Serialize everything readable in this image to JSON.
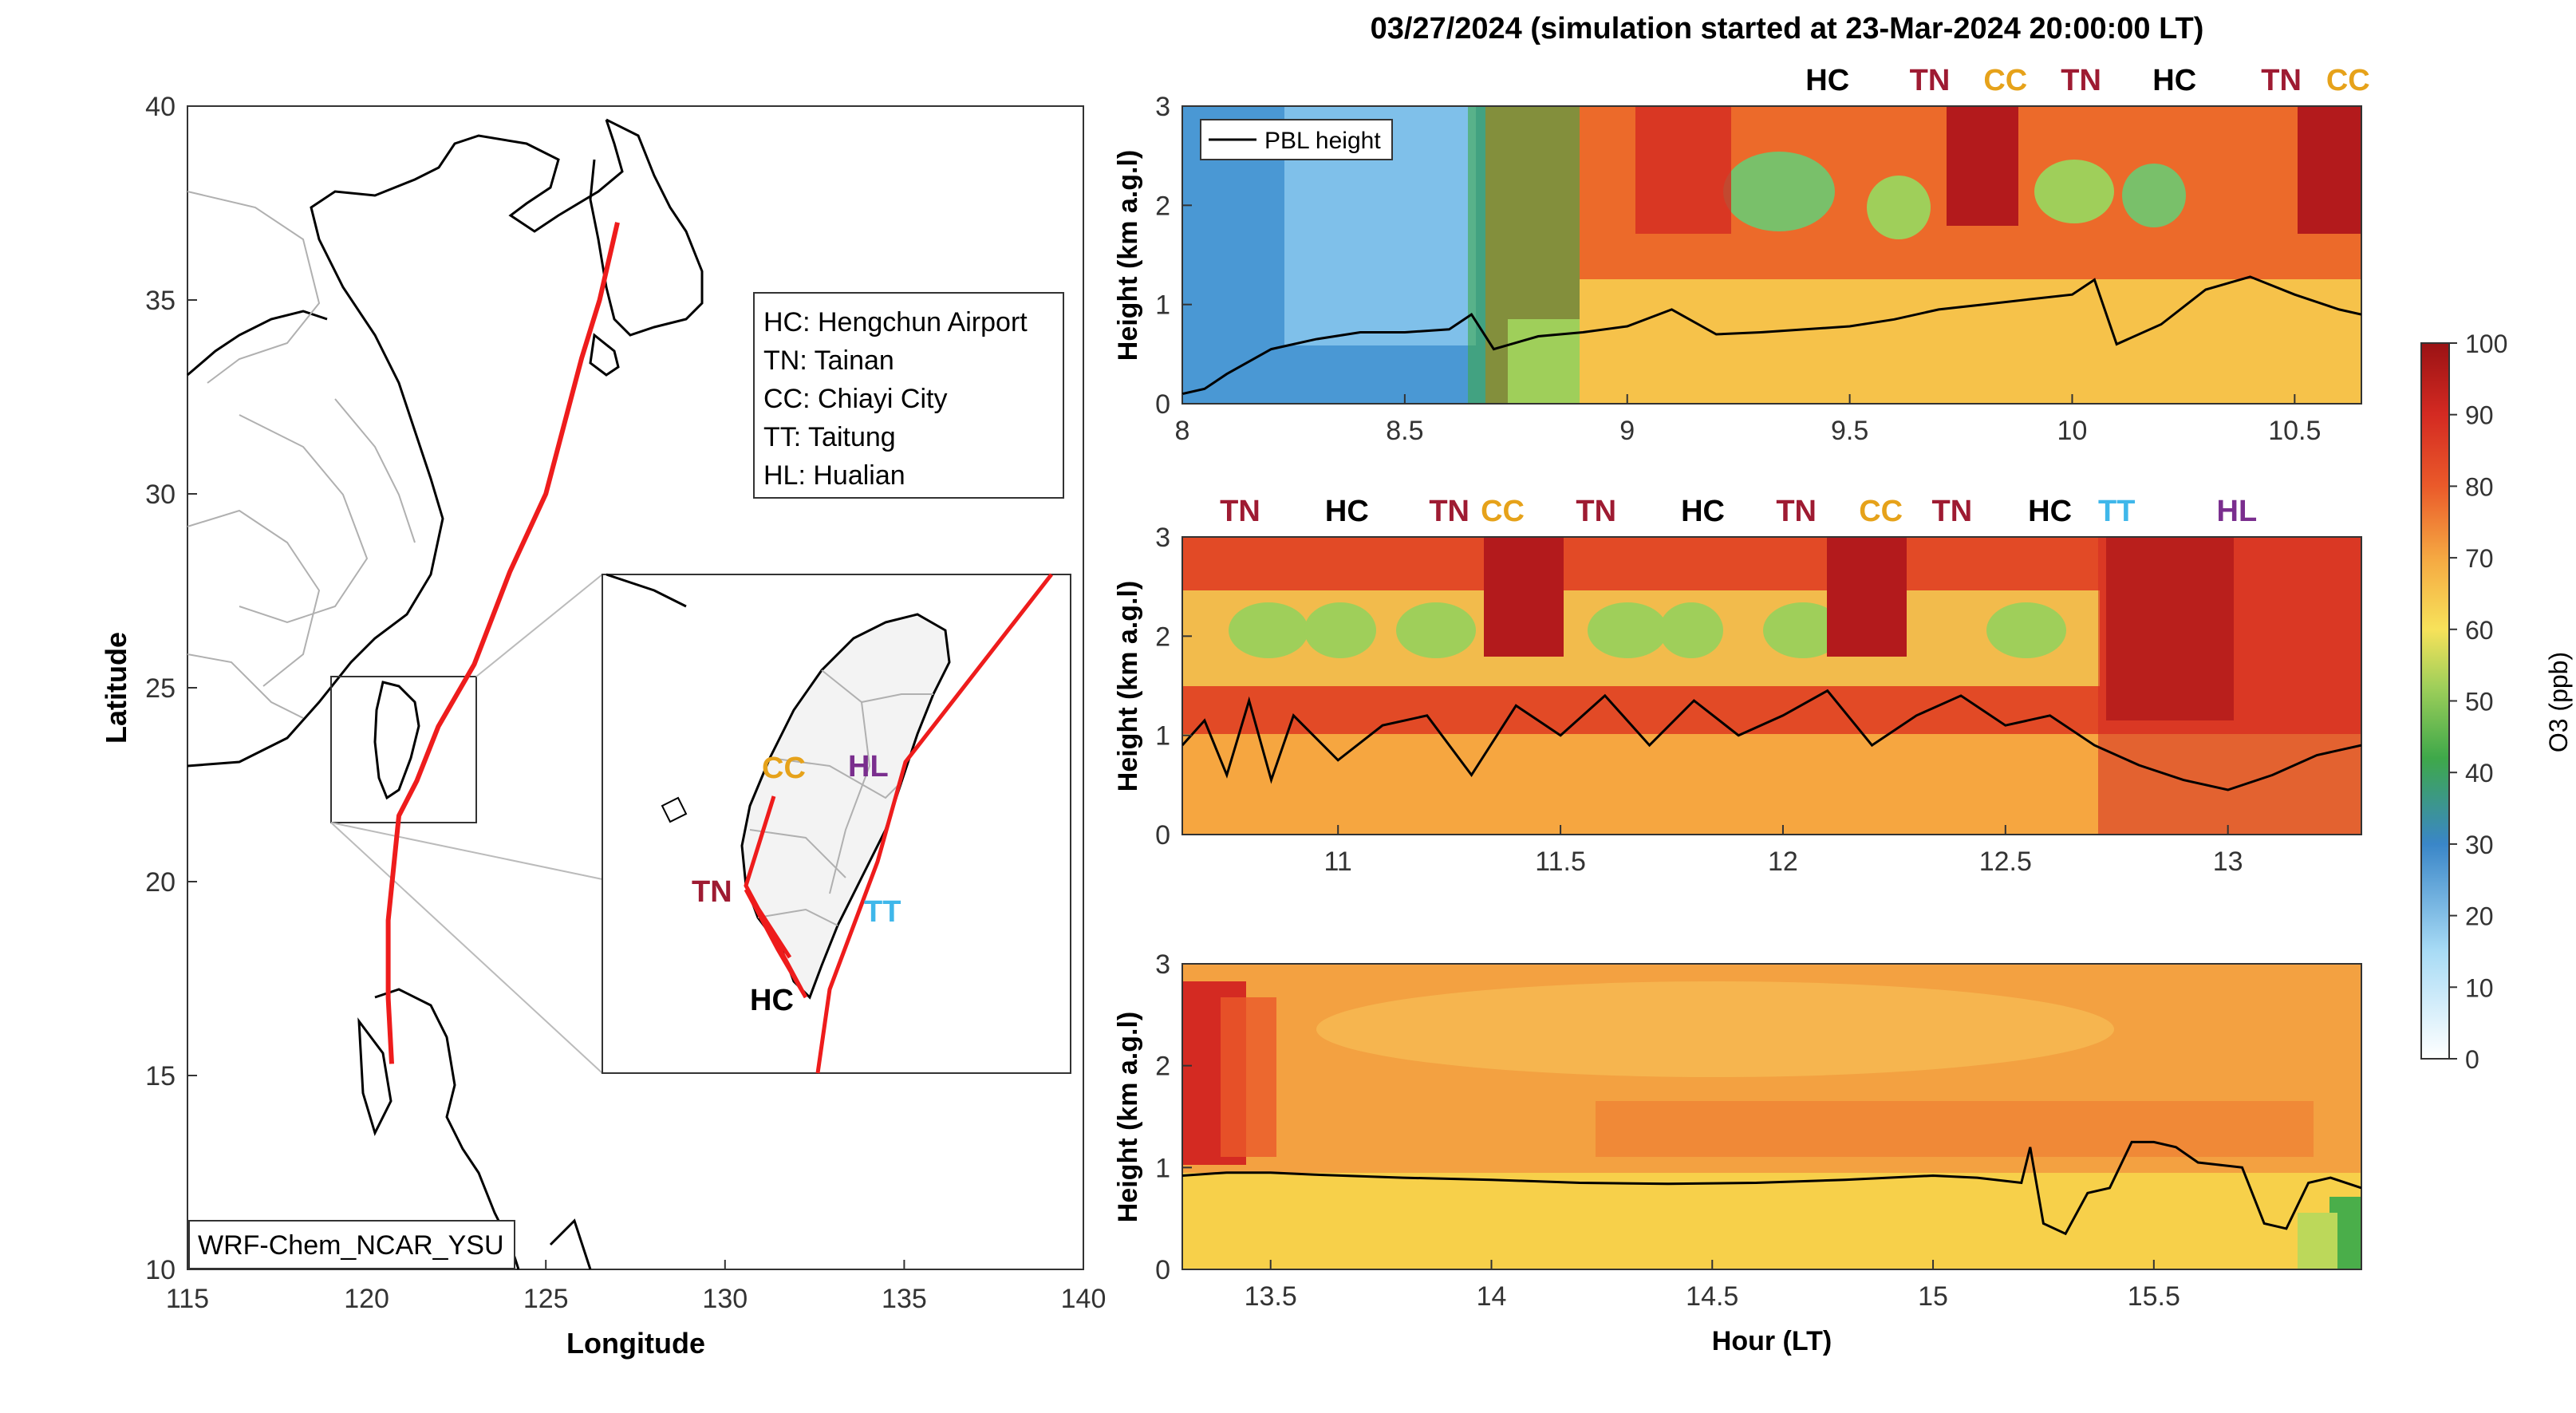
{
  "title": "03/27/2024 (simulation started at 23-Mar-2024 20:00:00 LT)",
  "colors": {
    "track": "#ee1c1c",
    "TN": "#9e1b32",
    "HC": "#000000",
    "CC": "#e6a21a",
    "TT": "#3fb7ea",
    "HL": "#7a2e8e",
    "pbl": "#000000"
  },
  "map": {
    "xlabel": "Longitude",
    "ylabel": "Latitude",
    "xticks": [
      "115",
      "120",
      "125",
      "130",
      "135",
      "140"
    ],
    "yticks": [
      "40",
      "35",
      "30",
      "25",
      "20",
      "15",
      "10"
    ],
    "xlim": [
      115,
      140
    ],
    "ylim": [
      10,
      40
    ],
    "model_label": "WRF-Chem_NCAR_YSU",
    "legend": [
      "HC: Hengchun Airport",
      "TN: Tainan",
      "CC: Chiayi City",
      "TT: Taitung",
      "HL: Hualian"
    ],
    "inset_labels": [
      "CC",
      "HL",
      "TN",
      "TT",
      "HC"
    ],
    "track": [
      [
        127.0,
        37.0
      ],
      [
        126.5,
        35.0
      ],
      [
        126.0,
        33.5
      ],
      [
        125.0,
        30.0
      ],
      [
        124.0,
        28.0
      ],
      [
        123.0,
        25.6
      ],
      [
        122.0,
        24.0
      ],
      [
        121.4,
        22.6
      ],
      [
        120.9,
        21.7
      ],
      [
        120.6,
        19.0
      ],
      [
        120.6,
        17.0
      ],
      [
        120.7,
        15.3
      ]
    ]
  },
  "chart_data": [
    {
      "type": "heatmap",
      "title": "",
      "xlabel": "",
      "ylabel": "Height (km a.g.l)",
      "xlim": [
        8.0,
        10.65
      ],
      "ylim": [
        0,
        3
      ],
      "xticks": [
        "8",
        "8.5",
        "9",
        "9.5",
        "10",
        "10.5"
      ],
      "yticks": [
        "0",
        "1",
        "2",
        "3"
      ],
      "legend": "PBL height",
      "site_labels": [
        {
          "name": "HC",
          "hour": 9.45
        },
        {
          "name": "TN",
          "hour": 9.68
        },
        {
          "name": "CC",
          "hour": 9.85
        },
        {
          "name": "TN",
          "hour": 10.02
        },
        {
          "name": "HC",
          "hour": 10.23
        },
        {
          "name": "TN",
          "hour": 10.47
        },
        {
          "name": "CC",
          "hour": 10.62
        }
      ],
      "pbl_height_km": {
        "hours": [
          8.0,
          8.05,
          8.1,
          8.2,
          8.3,
          8.4,
          8.5,
          8.6,
          8.65,
          8.7,
          8.8,
          8.9,
          9.0,
          9.1,
          9.2,
          9.3,
          9.4,
          9.5,
          9.6,
          9.7,
          9.8,
          9.9,
          10.0,
          10.05,
          10.1,
          10.2,
          10.3,
          10.4,
          10.5,
          10.6,
          10.65
        ],
        "values": [
          0.1,
          0.15,
          0.3,
          0.55,
          0.65,
          0.72,
          0.72,
          0.75,
          0.9,
          0.55,
          0.68,
          0.72,
          0.78,
          0.95,
          0.7,
          0.72,
          0.75,
          0.78,
          0.85,
          0.95,
          1.0,
          1.05,
          1.1,
          1.25,
          0.6,
          0.8,
          1.15,
          1.28,
          1.1,
          0.95,
          0.9
        ]
      }
    },
    {
      "type": "heatmap",
      "title": "",
      "xlabel": "",
      "ylabel": "Height (km a.g.l)",
      "xlim": [
        10.65,
        13.3
      ],
      "ylim": [
        0,
        3
      ],
      "xticks": [
        "11",
        "11.5",
        "12",
        "12.5",
        "13"
      ],
      "yticks": [
        "0",
        "1",
        "2",
        "3"
      ],
      "site_labels": [
        {
          "name": "TN",
          "hour": 10.78
        },
        {
          "name": "HC",
          "hour": 11.02
        },
        {
          "name": "TN",
          "hour": 11.25
        },
        {
          "name": "CC",
          "hour": 11.37
        },
        {
          "name": "TN",
          "hour": 11.58
        },
        {
          "name": "HC",
          "hour": 11.82
        },
        {
          "name": "TN",
          "hour": 12.03
        },
        {
          "name": "CC",
          "hour": 12.22
        },
        {
          "name": "TN",
          "hour": 12.38
        },
        {
          "name": "HC",
          "hour": 12.6
        },
        {
          "name": "TT",
          "hour": 12.75
        },
        {
          "name": "HL",
          "hour": 13.02
        }
      ],
      "pbl_height_km": {
        "hours": [
          10.65,
          10.7,
          10.75,
          10.8,
          10.85,
          10.9,
          11.0,
          11.1,
          11.2,
          11.3,
          11.4,
          11.5,
          11.6,
          11.7,
          11.8,
          11.9,
          12.0,
          12.1,
          12.2,
          12.3,
          12.4,
          12.5,
          12.6,
          12.7,
          12.8,
          12.9,
          13.0,
          13.1,
          13.2,
          13.3
        ],
        "values": [
          0.9,
          1.15,
          0.6,
          1.35,
          0.55,
          1.2,
          0.75,
          1.1,
          1.2,
          0.6,
          1.3,
          1.0,
          1.4,
          0.9,
          1.35,
          1.0,
          1.2,
          1.45,
          0.9,
          1.2,
          1.4,
          1.1,
          1.2,
          0.9,
          0.7,
          0.55,
          0.45,
          0.6,
          0.8,
          0.9
        ]
      }
    },
    {
      "type": "heatmap",
      "title": "",
      "xlabel": "Hour (LT)",
      "ylabel": "Height (km a.g.l)",
      "xlim": [
        13.3,
        15.97
      ],
      "ylim": [
        0,
        3
      ],
      "xticks": [
        "13.5",
        "14",
        "14.5",
        "15",
        "15.5"
      ],
      "yticks": [
        "0",
        "1",
        "2",
        "3"
      ],
      "pbl_height_km": {
        "hours": [
          13.3,
          13.4,
          13.5,
          13.6,
          13.8,
          14.0,
          14.2,
          14.4,
          14.6,
          14.8,
          15.0,
          15.1,
          15.2,
          15.22,
          15.25,
          15.3,
          15.35,
          15.4,
          15.45,
          15.5,
          15.55,
          15.6,
          15.7,
          15.75,
          15.8,
          15.85,
          15.9,
          15.97
        ],
        "values": [
          0.92,
          0.95,
          0.95,
          0.93,
          0.9,
          0.88,
          0.85,
          0.84,
          0.85,
          0.88,
          0.92,
          0.9,
          0.85,
          1.2,
          0.45,
          0.35,
          0.75,
          0.8,
          1.25,
          1.25,
          1.2,
          1.05,
          1.0,
          0.45,
          0.4,
          0.85,
          0.9,
          0.8
        ]
      }
    }
  ],
  "colorbar": {
    "label": "O3 (ppb)",
    "ticks": [
      "0",
      "10",
      "20",
      "30",
      "40",
      "50",
      "60",
      "70",
      "80",
      "90",
      "100"
    ],
    "range": [
      0,
      100
    ]
  }
}
